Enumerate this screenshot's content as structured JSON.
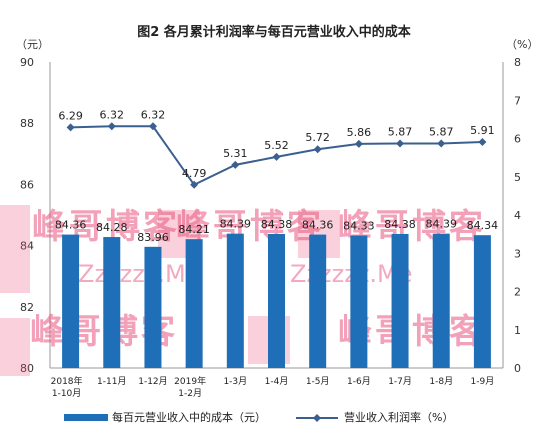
{
  "chart_data": {
    "type": "bar+line",
    "title": "图2  各月累计利润率与每百元营业收入中的成本",
    "left_unit": "（元）",
    "right_unit": "（%）",
    "categories": [
      [
        "2018年",
        "1-10月"
      ],
      [
        "1-11月"
      ],
      [
        "1-12月"
      ],
      [
        "2019年",
        "1-2月"
      ],
      [
        "1-3月"
      ],
      [
        "1-4月"
      ],
      [
        "1-5月"
      ],
      [
        "1-6月"
      ],
      [
        "1-7月"
      ],
      [
        "1-8月"
      ],
      [
        "1-9月"
      ]
    ],
    "left_axis": {
      "range": [
        80,
        90
      ],
      "ticks": [
        80,
        82,
        84,
        86,
        88,
        90
      ]
    },
    "right_axis": {
      "range": [
        0,
        8
      ],
      "ticks": [
        0,
        1,
        2,
        3,
        4,
        5,
        6,
        7,
        8
      ]
    },
    "series": [
      {
        "name": "每百元营业收入中的成本（元）",
        "kind": "bar",
        "axis": "left",
        "color": "#1f6fb8",
        "values": [
          84.36,
          84.28,
          83.96,
          84.21,
          84.39,
          84.38,
          84.36,
          84.33,
          84.38,
          84.39,
          84.34
        ],
        "labels": [
          "84.36",
          "84.28",
          "83.96",
          "84.21",
          "84.39",
          "84.38",
          "84.36",
          "84.33",
          "84.38",
          "84.39",
          "84.34"
        ]
      },
      {
        "name": "营业收入利润率（%）",
        "kind": "line",
        "axis": "right",
        "color": "#3b5f8f",
        "values": [
          6.29,
          6.32,
          6.32,
          4.79,
          5.31,
          5.52,
          5.72,
          5.86,
          5.87,
          5.87,
          5.91
        ],
        "labels": [
          "6.29",
          "6.32",
          "6.32",
          "4.79",
          "5.31",
          "5.52",
          "5.72",
          "5.86",
          "5.87",
          "5.87",
          "5.91"
        ]
      }
    ],
    "grid": false,
    "legend": "bottom"
  },
  "watermark": {
    "text_cn": "峰哥博客",
    "text_en": "Zzzzzz.Me",
    "color": "#e8557f"
  }
}
